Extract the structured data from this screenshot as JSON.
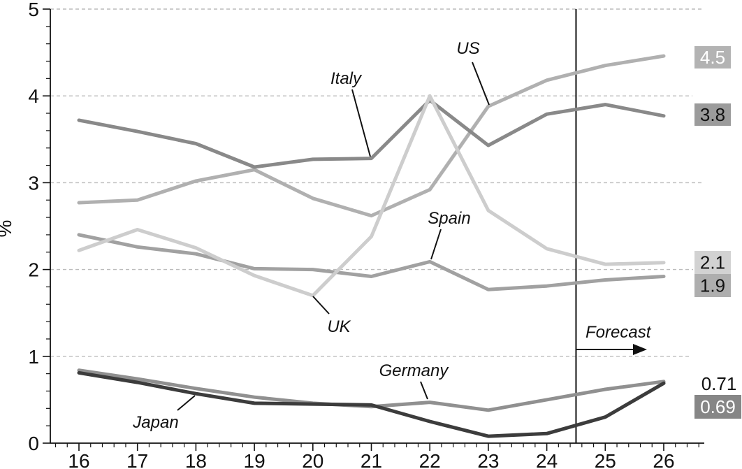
{
  "chart_data": {
    "type": "line",
    "title": "",
    "xlabel": "",
    "ylabel": "%",
    "x": [
      16,
      17,
      18,
      19,
      20,
      21,
      22,
      23,
      24,
      25,
      26
    ],
    "ylim": [
      0,
      5
    ],
    "y_ticks": [
      0,
      1,
      2,
      3,
      4,
      5
    ],
    "minor_tick_step": 0.2,
    "grid": "horizontal dashed at 1,2,3,4,5",
    "grid_color": "#bcbcbc",
    "background": "#ffffff",
    "forecast": {
      "label": "Forecast",
      "start_x": 24.5
    },
    "series": [
      {
        "name": "Spain",
        "color": "#a1a1a1",
        "values": [
          2.4,
          2.26,
          2.18,
          2.01,
          2.0,
          1.92,
          2.09,
          1.77,
          1.81,
          1.88,
          1.92
        ],
        "end_label": "1.9",
        "end_label_bg": "#aeaeae",
        "end_label_color": "#111111",
        "callout_year": 22
      },
      {
        "name": "US",
        "color": "#b0b0b0",
        "values": [
          2.77,
          2.8,
          3.02,
          3.15,
          2.82,
          2.62,
          2.92,
          3.88,
          4.18,
          4.35,
          4.46
        ],
        "end_label": "4.5",
        "end_label_bg": "#b3b3b3",
        "end_label_color": "#ffffff",
        "callout_year": 23
      },
      {
        "name": "Italy",
        "color": "#898989",
        "values": [
          3.72,
          3.59,
          3.45,
          3.18,
          3.27,
          3.28,
          3.95,
          3.43,
          3.79,
          3.9,
          3.77
        ],
        "end_label": "3.8",
        "end_label_bg": "#9b9b9b",
        "end_label_color": "#111111",
        "callout_year": 21
      },
      {
        "name": "UK",
        "color": "#cdcdcd",
        "values": [
          2.22,
          2.46,
          2.25,
          1.93,
          1.7,
          2.38,
          4.0,
          2.68,
          2.24,
          2.06,
          2.08
        ],
        "end_label": "2.1",
        "end_label_bg": "#d2d2d2",
        "end_label_color": "#111111",
        "callout_year": 20
      },
      {
        "name": "Germany",
        "color": "#909090",
        "values": [
          0.84,
          0.74,
          0.63,
          0.53,
          0.46,
          0.42,
          0.47,
          0.38,
          0.5,
          0.62,
          0.71
        ],
        "end_label": "0.71",
        "end_label_bg": "none",
        "end_label_color": "#111111",
        "callout_year": 22
      },
      {
        "name": "Japan",
        "color": "#3c3c3c",
        "values": [
          0.81,
          0.7,
          0.57,
          0.46,
          0.45,
          0.44,
          0.25,
          0.08,
          0.11,
          0.3,
          0.69
        ],
        "end_label": "0.69",
        "end_label_bg": "#868686",
        "end_label_color": "#ffffff",
        "callout_year": 18
      }
    ]
  }
}
